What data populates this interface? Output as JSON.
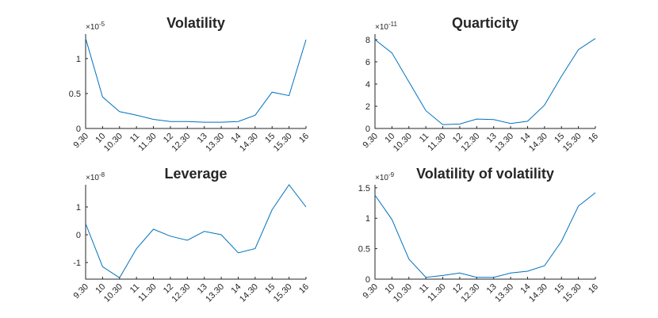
{
  "chart_data": [
    {
      "type": "line",
      "title": "Volatility",
      "multiplier": "×10",
      "exponent": "-5",
      "categories": [
        "9.30",
        "10",
        "10.30",
        "11",
        "11.30",
        "12",
        "12.30",
        "13",
        "13.30",
        "14",
        "14.30",
        "15",
        "15.30",
        "16"
      ],
      "values": [
        1.29,
        0.45,
        0.24,
        0.19,
        0.13,
        0.1,
        0.1,
        0.09,
        0.09,
        0.1,
        0.19,
        0.52,
        0.47,
        1.27
      ],
      "ylim": [
        0,
        1.35
      ],
      "yticks": [
        "0",
        "0.5",
        "1"
      ],
      "ytick_values": [
        0,
        0.5,
        1
      ],
      "xlabel": "",
      "ylabel": "",
      "grid": false
    },
    {
      "type": "line",
      "title": "Quarticity",
      "multiplier": "×10",
      "exponent": "-11",
      "categories": [
        "9.30",
        "10",
        "10.30",
        "11",
        "11.30",
        "12",
        "12.30",
        "13",
        "13.30",
        "14",
        "14.30",
        "15",
        "15.30",
        "16"
      ],
      "values": [
        8.0,
        6.8,
        4.2,
        1.6,
        0.35,
        0.4,
        0.85,
        0.8,
        0.45,
        0.65,
        2.1,
        4.7,
        7.1,
        8.1
      ],
      "ylim": [
        0,
        8.5
      ],
      "yticks": [
        "0",
        "2",
        "4",
        "6",
        "8"
      ],
      "ytick_values": [
        0,
        2,
        4,
        6,
        8
      ],
      "xlabel": "",
      "ylabel": "",
      "grid": false
    },
    {
      "type": "line",
      "title": "Leverage",
      "multiplier": "×10",
      "exponent": "-8",
      "categories": [
        "9.30",
        "10",
        "10.30",
        "11",
        "11.30",
        "12",
        "12.30",
        "13",
        "13.30",
        "14",
        "14.30",
        "15",
        "15.30",
        "16"
      ],
      "values": [
        0.4,
        -1.15,
        -1.55,
        -0.5,
        0.2,
        -0.05,
        -0.2,
        0.12,
        0.0,
        -0.65,
        -0.5,
        0.9,
        1.8,
        1.0
      ],
      "ylim": [
        -1.6,
        1.8
      ],
      "yticks": [
        "-1",
        "0",
        "1"
      ],
      "ytick_values": [
        -1,
        0,
        1
      ],
      "xlabel": "",
      "ylabel": "",
      "grid": false
    },
    {
      "type": "line",
      "title": "Volatility of volatility",
      "multiplier": "×10",
      "exponent": "-9",
      "categories": [
        "9.30",
        "10",
        "10.30",
        "11",
        "11.30",
        "12",
        "12.30",
        "13",
        "13.30",
        "14",
        "14.30",
        "15",
        "15.30",
        "16"
      ],
      "values": [
        1.38,
        0.98,
        0.33,
        0.03,
        0.06,
        0.1,
        0.03,
        0.03,
        0.1,
        0.13,
        0.22,
        0.62,
        1.2,
        1.42
      ],
      "ylim": [
        0,
        1.55
      ],
      "yticks": [
        "0",
        "0.5",
        "1",
        "1.5"
      ],
      "ytick_values": [
        0,
        0.5,
        1,
        1.5
      ],
      "xlabel": "",
      "ylabel": "",
      "grid": false
    }
  ],
  "style": {
    "line_color": "#0072bd",
    "axis_color": "#262626",
    "background": "#ffffff"
  }
}
